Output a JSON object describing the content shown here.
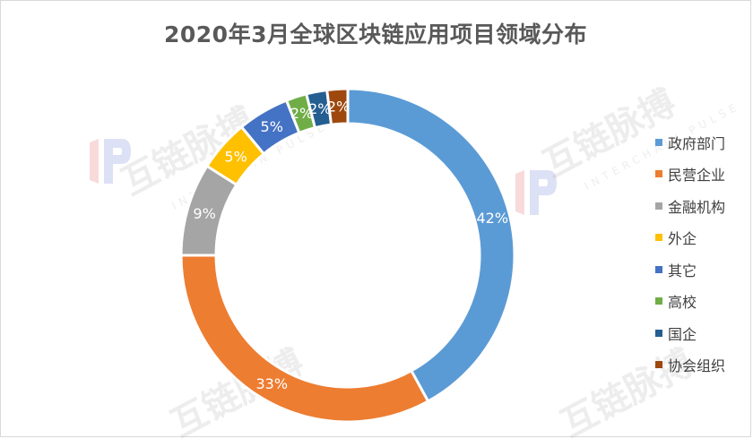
{
  "chart_data": {
    "type": "pie",
    "title": "2020年3月全球区块链应用项目领域分布",
    "categories": [
      "政府部门",
      "民营企业",
      "金融机构",
      "外企",
      "其它",
      "高校",
      "国企",
      "协会组织"
    ],
    "values": [
      42,
      33,
      9,
      5,
      5,
      2,
      2,
      2
    ],
    "data_labels": [
      "42%",
      "33%",
      "9%",
      "5%",
      "5%",
      "2%",
      "2%",
      "2%"
    ],
    "colors": [
      "#5b9bd5",
      "#ed7d31",
      "#a5a5a5",
      "#ffc000",
      "#4472c4",
      "#70ad47",
      "#255e91",
      "#9e480e"
    ],
    "legend_position": "right",
    "donut": true
  },
  "watermark": {
    "text": "互链脉搏",
    "subtext": "INTERCHAIN PULSE"
  }
}
